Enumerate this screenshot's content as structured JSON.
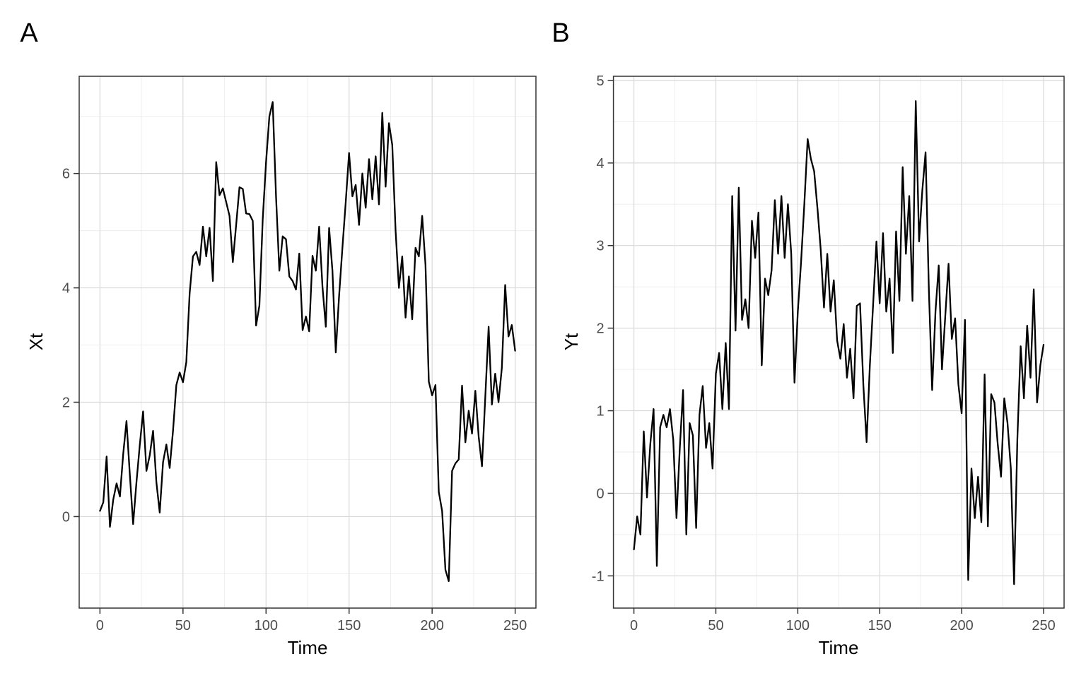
{
  "figure": {
    "background": "#ffffff",
    "colors": {
      "line": "#000000",
      "panel_border": "#333333",
      "grid_major": "#d9d9d9",
      "grid_minor": "#ececec",
      "tick_mark": "#333333",
      "tick_label": "#4d4d4d",
      "text": "#000000"
    }
  },
  "chart_data": [
    {
      "type": "line",
      "panel_label": "A",
      "xlabel": "Time",
      "ylabel": "Xt",
      "legend": "none",
      "grid": true,
      "x_ticks": [
        0,
        50,
        100,
        150,
        200,
        250
      ],
      "x_minor": [
        25,
        75,
        125,
        175,
        225
      ],
      "y_ticks": [
        0,
        2,
        4,
        6
      ],
      "y_minor": [
        -1,
        1,
        3,
        5,
        7
      ],
      "xlim": [
        -12.5,
        262.5
      ],
      "ylim": [
        -1.6,
        7.7
      ],
      "x": [
        0,
        2,
        4,
        6,
        8,
        10,
        12,
        14,
        16,
        18,
        20,
        22,
        24,
        26,
        28,
        30,
        32,
        34,
        36,
        38,
        40,
        42,
        44,
        46,
        48,
        50,
        52,
        54,
        56,
        58,
        60,
        62,
        64,
        66,
        68,
        70,
        72,
        74,
        76,
        78,
        80,
        82,
        84,
        86,
        88,
        90,
        92,
        94,
        96,
        98,
        100,
        102,
        104,
        106,
        108,
        110,
        112,
        114,
        116,
        118,
        120,
        122,
        124,
        126,
        128,
        130,
        132,
        134,
        136,
        138,
        140,
        142,
        144,
        146,
        148,
        150,
        152,
        154,
        156,
        158,
        160,
        162,
        164,
        166,
        168,
        170,
        172,
        174,
        176,
        178,
        180,
        182,
        184,
        186,
        188,
        190,
        192,
        194,
        196,
        198,
        200,
        202,
        204,
        206,
        208,
        210,
        212,
        214,
        216,
        218,
        220,
        222,
        224,
        226,
        228,
        230,
        232,
        234,
        236,
        238,
        240,
        242,
        244,
        246,
        248,
        250
      ],
      "y": [
        0.1,
        0.25,
        1.05,
        -0.18,
        0.3,
        0.58,
        0.35,
        1.1,
        1.67,
        0.74,
        -0.13,
        0.6,
        1.25,
        1.84,
        0.8,
        1.07,
        1.5,
        0.6,
        0.07,
        0.95,
        1.26,
        0.85,
        1.5,
        2.3,
        2.52,
        2.35,
        2.7,
        3.9,
        4.55,
        4.63,
        4.4,
        5.07,
        4.55,
        5.05,
        4.12,
        6.2,
        5.62,
        5.74,
        5.5,
        5.26,
        4.45,
        5.1,
        5.76,
        5.73,
        5.3,
        5.29,
        5.17,
        3.34,
        3.69,
        5.2,
        6.2,
        7.0,
        7.25,
        5.6,
        4.3,
        4.9,
        4.85,
        4.2,
        4.12,
        3.97,
        4.6,
        3.26,
        3.5,
        3.24,
        4.56,
        4.3,
        5.07,
        4.02,
        3.32,
        5.05,
        4.3,
        2.87,
        3.86,
        4.7,
        5.5,
        6.36,
        5.6,
        5.8,
        5.1,
        6.0,
        5.4,
        6.25,
        5.55,
        6.3,
        5.46,
        7.06,
        5.77,
        6.88,
        6.5,
        5.0,
        4.0,
        4.55,
        3.48,
        4.2,
        3.45,
        4.7,
        4.55,
        5.26,
        4.4,
        2.36,
        2.12,
        2.3,
        0.43,
        0.1,
        -0.93,
        -1.13,
        0.8,
        0.93,
        1.0,
        2.29,
        1.3,
        1.85,
        1.45,
        2.2,
        1.4,
        0.88,
        2.1,
        3.32,
        1.96,
        2.5,
        2.0,
        2.6,
        4.05,
        3.15,
        3.35,
        2.9
      ]
    },
    {
      "type": "line",
      "panel_label": "B",
      "xlabel": "Time",
      "ylabel": "Yt",
      "legend": "none",
      "grid": true,
      "x_ticks": [
        0,
        50,
        100,
        150,
        200,
        250
      ],
      "x_minor": [
        25,
        75,
        125,
        175,
        225
      ],
      "y_ticks": [
        -1,
        0,
        1,
        2,
        3,
        4,
        5
      ],
      "y_minor": [
        -0.5,
        0.5,
        1.5,
        2.5,
        3.5,
        4.5
      ],
      "xlim": [
        -12.5,
        262.5
      ],
      "ylim": [
        -1.39,
        5.05
      ],
      "x": [
        0,
        2,
        4,
        6,
        8,
        10,
        12,
        14,
        16,
        18,
        20,
        22,
        24,
        26,
        28,
        30,
        32,
        34,
        36,
        38,
        40,
        42,
        44,
        46,
        48,
        50,
        52,
        54,
        56,
        58,
        60,
        62,
        64,
        66,
        68,
        70,
        72,
        74,
        76,
        78,
        80,
        82,
        84,
        86,
        88,
        90,
        92,
        94,
        96,
        98,
        100,
        102,
        104,
        106,
        108,
        110,
        112,
        114,
        116,
        118,
        120,
        122,
        124,
        126,
        128,
        130,
        132,
        134,
        136,
        138,
        140,
        142,
        144,
        146,
        148,
        150,
        152,
        154,
        156,
        158,
        160,
        162,
        164,
        166,
        168,
        170,
        172,
        174,
        176,
        178,
        180,
        182,
        184,
        186,
        188,
        190,
        192,
        194,
        196,
        198,
        200,
        202,
        204,
        206,
        208,
        210,
        212,
        214,
        216,
        218,
        220,
        222,
        224,
        226,
        228,
        230,
        232,
        234,
        236,
        238,
        240,
        242,
        244,
        246,
        248,
        250
      ],
      "y": [
        -0.68,
        -0.28,
        -0.5,
        0.75,
        -0.05,
        0.6,
        1.02,
        -0.88,
        0.8,
        0.95,
        0.8,
        1.02,
        0.65,
        -0.3,
        0.55,
        1.25,
        -0.5,
        0.85,
        0.7,
        -0.42,
        0.95,
        1.3,
        0.55,
        0.85,
        0.3,
        1.45,
        1.7,
        1.02,
        1.82,
        1.02,
        3.6,
        1.97,
        3.7,
        2.1,
        2.35,
        2.0,
        3.3,
        2.85,
        3.4,
        1.55,
        2.6,
        2.4,
        2.7,
        3.55,
        2.9,
        3.6,
        2.85,
        3.5,
        2.9,
        1.34,
        2.2,
        2.8,
        3.5,
        4.29,
        4.05,
        3.9,
        3.45,
        2.95,
        2.25,
        2.9,
        2.2,
        2.58,
        1.85,
        1.63,
        2.05,
        1.4,
        1.75,
        1.15,
        2.27,
        2.3,
        1.31,
        0.62,
        1.55,
        2.3,
        3.05,
        2.3,
        3.15,
        2.2,
        2.6,
        1.7,
        3.17,
        2.33,
        3.95,
        2.9,
        3.6,
        2.33,
        4.75,
        3.05,
        3.67,
        4.13,
        2.45,
        1.25,
        2.2,
        2.76,
        1.5,
        2.15,
        2.78,
        1.87,
        2.12,
        1.32,
        0.97,
        2.1,
        -1.05,
        0.3,
        -0.3,
        0.2,
        -0.35,
        1.44,
        -0.4,
        1.2,
        1.1,
        0.6,
        0.2,
        1.15,
        0.85,
        0.3,
        -1.1,
        0.65,
        1.78,
        1.15,
        2.03,
        1.4,
        2.47,
        1.1,
        1.55,
        1.8
      ]
    }
  ]
}
